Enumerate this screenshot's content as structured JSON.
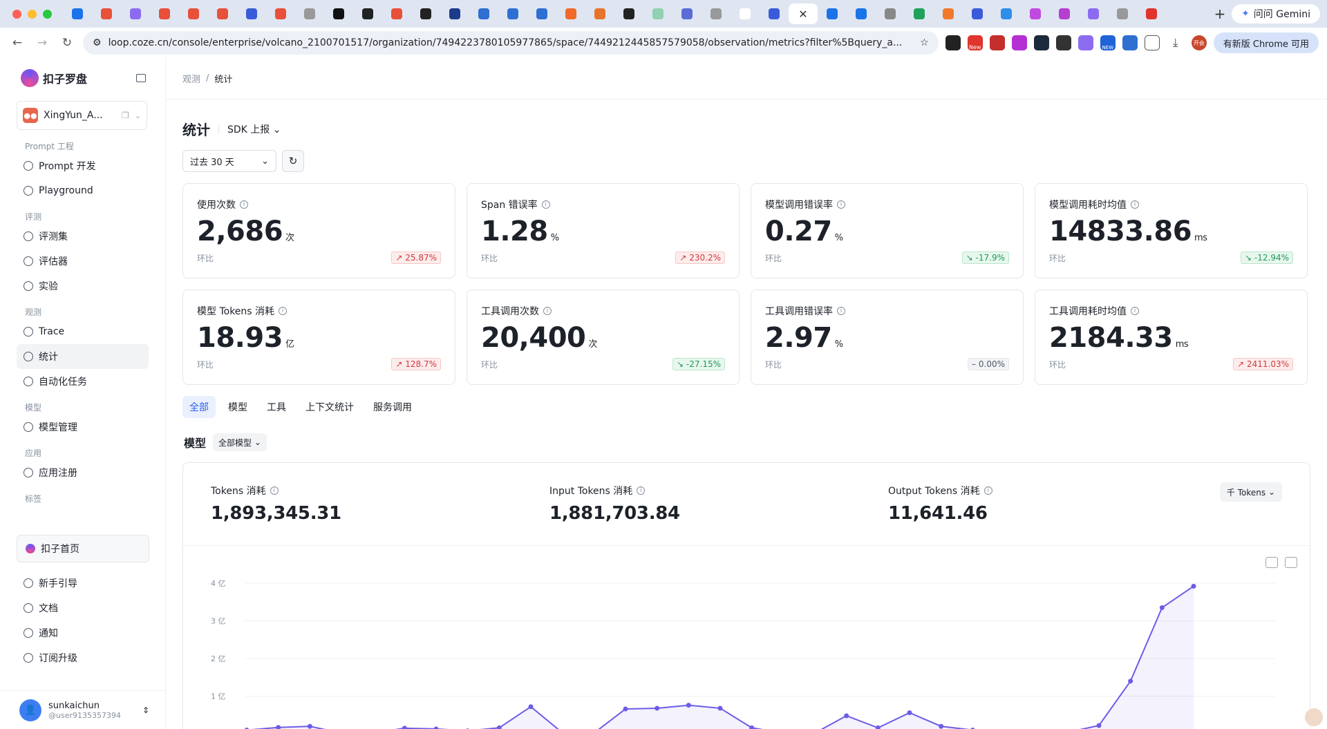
{
  "browser": {
    "tab_count": 38,
    "gemini_label": "问问 Gemini",
    "url": "loop.coze.cn/console/enterprise/volcano_2100701517/organization/7494223780105977865/space/7449212445857579058/observation/metrics?filter%5Bquery_a...",
    "update_label": "有新版 Chrome 可用",
    "ext_new": "New",
    "ext_new2": "NEW",
    "ext_badge": "开会"
  },
  "sidebar": {
    "app_name": "扣子罗盘",
    "workspace": "XingYun_A...",
    "sections": [
      {
        "title": "Prompt 工程",
        "items": [
          "Prompt 开发",
          "Playground"
        ]
      },
      {
        "title": "评测",
        "items": [
          "评测集",
          "评估器",
          "实验"
        ]
      },
      {
        "title": "观测",
        "items": [
          "Trace",
          "统计",
          "自动化任务"
        ]
      },
      {
        "title": "模型",
        "items": [
          "模型管理"
        ]
      },
      {
        "title": "应用",
        "items": [
          "应用注册"
        ]
      },
      {
        "title": "标签",
        "items": []
      }
    ],
    "active_item": "统计",
    "home": "扣子首页",
    "bottom": [
      "新手引导",
      "文档",
      "通知",
      "订阅升级"
    ],
    "user_name": "sunkaichun",
    "user_id": "@user9135357394"
  },
  "breadcrumb": {
    "parent": "观测",
    "current": "统计"
  },
  "header": {
    "title": "统计",
    "source": "SDK 上报"
  },
  "filter": {
    "range": "过去 30 天"
  },
  "metrics": [
    {
      "label": "使用次数",
      "value": "2,686",
      "unit": "次",
      "cmp": "环比",
      "delta": "25.87%",
      "trend": "up"
    },
    {
      "label": "Span 错误率",
      "value": "1.28",
      "unit": "%",
      "cmp": "环比",
      "delta": "230.2%",
      "trend": "up"
    },
    {
      "label": "模型调用错误率",
      "value": "0.27",
      "unit": "%",
      "cmp": "环比",
      "delta": "-17.9%",
      "trend": "down"
    },
    {
      "label": "模型调用耗时均值",
      "value": "14833.86",
      "unit": "ms",
      "cmp": "环比",
      "delta": "-12.94%",
      "trend": "down"
    },
    {
      "label": "模型 Tokens 消耗",
      "value": "18.93",
      "unit": "亿",
      "cmp": "环比",
      "delta": "128.7%",
      "trend": "up"
    },
    {
      "label": "工具调用次数",
      "value": "20,400",
      "unit": "次",
      "cmp": "环比",
      "delta": "-27.15%",
      "trend": "down"
    },
    {
      "label": "工具调用错误率",
      "value": "2.97",
      "unit": "%",
      "cmp": "环比",
      "delta": "0.00%",
      "trend": "flat"
    },
    {
      "label": "工具调用耗时均值",
      "value": "2184.33",
      "unit": "ms",
      "cmp": "环比",
      "delta": "2411.03%",
      "trend": "up"
    }
  ],
  "tabs": [
    "全部",
    "模型",
    "工具",
    "上下文统计",
    "服务调用"
  ],
  "active_tab": "全部",
  "model_section": {
    "label": "模型",
    "filter": "全部模型",
    "unit_select": "千 Tokens"
  },
  "kpis": [
    {
      "label": "Tokens 消耗",
      "value": "1,893,345.31"
    },
    {
      "label": "Input Tokens 消耗",
      "value": "1,881,703.84"
    },
    {
      "label": "Output Tokens 消耗",
      "value": "11,641.46"
    }
  ],
  "colors": {
    "accent": "#6c5ce7",
    "up": "#d0393b",
    "down": "#1f9a58"
  },
  "chart_data": {
    "type": "area",
    "yticks": [
      "4 亿",
      "3 亿",
      "2 亿",
      "1 亿"
    ],
    "ytick_values": [
      4,
      3,
      2,
      1
    ],
    "ylim": [
      0,
      4
    ],
    "values": [
      0.1,
      0.17,
      0.2,
      0.02,
      0.02,
      0.15,
      0.13,
      0.08,
      0.16,
      0.72,
      0.03,
      0.02,
      0.66,
      0.68,
      0.76,
      0.68,
      0.16,
      0.02,
      0.02,
      0.48,
      0.16,
      0.56,
      0.2,
      0.1,
      0.02,
      0.02,
      0.04,
      0.22,
      1.4,
      3.35,
      3.92
    ],
    "x_start": 0
  }
}
